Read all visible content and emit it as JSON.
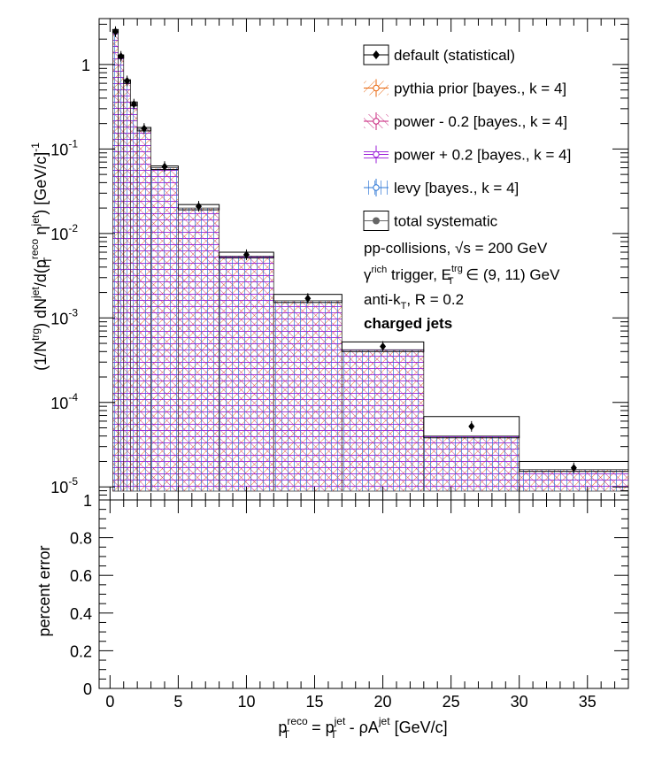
{
  "chart_data": [
    {
      "type": "histogram",
      "scale": "log",
      "ylabel": "(1/N^{trg}) dN^{jet}/d(p_{T}^{reco} η^{jet}) [GeV/c]^{-1}",
      "xlim": [
        -0.8,
        38
      ],
      "ylim": [
        7e-06,
        3.5
      ],
      "xticks": [
        0,
        5,
        10,
        15,
        20,
        25,
        30,
        35
      ],
      "yticks": [
        {
          "exp": -5,
          "label": "10",
          "sup": "-5"
        },
        {
          "exp": -4,
          "label": "10",
          "sup": "-4"
        },
        {
          "exp": -3,
          "label": "10",
          "sup": "-3"
        },
        {
          "exp": -2,
          "label": "10",
          "sup": "-2"
        },
        {
          "exp": -1,
          "label": "10",
          "sup": "-1"
        },
        {
          "exp": 0,
          "label": "1",
          "sup": ""
        }
      ],
      "bin_edges": [
        0.2,
        0.6,
        1.0,
        1.5,
        2.0,
        3.0,
        5.0,
        8.0,
        12.0,
        17.0,
        23.0,
        30.0,
        38.0
      ],
      "histogram_values": [
        2.5,
        1.25,
        0.63,
        0.34,
        0.172,
        0.06,
        0.02,
        0.0054,
        0.0016,
        0.00042,
        4e-05,
        1.6e-05
      ],
      "systematic_upper": [
        2.6,
        1.3,
        0.66,
        0.36,
        0.18,
        0.063,
        0.022,
        0.006,
        0.0019,
        0.00052,
        6.8e-05,
        2e-05
      ],
      "series": [
        {
          "name": "default (statistical)",
          "color": "#000000",
          "points": [
            {
              "x": 0.4,
              "y": 2.45
            },
            {
              "x": 0.8,
              "y": 1.25
            },
            {
              "x": 1.25,
              "y": 0.64
            },
            {
              "x": 1.75,
              "y": 0.34
            },
            {
              "x": 2.5,
              "y": 0.175
            },
            {
              "x": 4.0,
              "y": 0.062
            },
            {
              "x": 6.5,
              "y": 0.021
            },
            {
              "x": 10.0,
              "y": 0.0056
            },
            {
              "x": 14.5,
              "y": 0.0017
            },
            {
              "x": 20.0,
              "y": 0.00046
            },
            {
              "x": 26.5,
              "y": 5.2e-05
            },
            {
              "x": 34.0,
              "y": 1.68e-05
            }
          ]
        },
        {
          "name": "pythia prior [bayes., k = 4]",
          "color": "#e8640a"
        },
        {
          "name": "power - 0.2 [bayes., k = 4]",
          "color": "#c71f7a"
        },
        {
          "name": "power + 0.2 [bayes., k = 4]",
          "color": "#9b1ed8"
        },
        {
          "name": "levy [bayes., k = 4]",
          "color": "#2f78d6"
        },
        {
          "name": "total systematic",
          "color": "#666666"
        }
      ],
      "annotations": [
        "pp-collisions, √s = 200 GeV",
        "γ^{rich} trigger, E_{T}^{trg} ∈ (9, 11) GeV",
        "anti-k_{T}, R = 0.2",
        "charged jets"
      ]
    },
    {
      "type": "line",
      "ylabel": "percent error",
      "xlabel": "p_{T}^{reco} = p_{T}^{jet} - ρA^{jet} [GeV/c]",
      "xlim": [
        -0.8,
        38
      ],
      "ylim": [
        0,
        1.0
      ],
      "yticks": [
        "0",
        "0.2",
        "0.4",
        "0.6",
        "0.8",
        "1"
      ],
      "xticks": [
        "0",
        "5",
        "10",
        "15",
        "20",
        "25",
        "30",
        "35"
      ],
      "reference_line": 1.0
    }
  ],
  "text": {
    "y_axis_top_base": "(1/N",
    "y_axis_top_sup1": "trg",
    "y_axis_top_mid": ") dN",
    "y_axis_top_sup2": "jet",
    "y_axis_top_mid2": "/d(p",
    "y_axis_top_sup3": "reco",
    "y_axis_top_sub3": "T",
    "y_axis_top_mid3": " η",
    "y_axis_top_sup4": "jet",
    "y_axis_top_end": ") [GeV/c]",
    "y_axis_top_sup5": "-1",
    "y_axis_bottom": "percent error",
    "x_axis_p": "p",
    "x_axis_sup1": "reco",
    "x_axis_sub1": "T",
    "x_axis_eq": " = p",
    "x_axis_sup2": "jet",
    "x_axis_sub2": "T",
    "x_axis_mid": " - ρA",
    "x_axis_sup3": "jet",
    "x_axis_end": " [GeV/c]",
    "ann1_a": "pp-collisions, ",
    "ann1_b": "√s",
    "ann1_c": " = 200 GeV",
    "ann2_a": "γ",
    "ann2_sup": "rich",
    "ann2_b": " trigger, E",
    "ann2_sup2": "trg",
    "ann2_sub2": "T",
    "ann2_c": " ∈ (9, 11) GeV",
    "ann3_a": "anti-k",
    "ann3_sub": "T",
    "ann3_b": ", R = 0.2",
    "ann4": "charged jets"
  }
}
